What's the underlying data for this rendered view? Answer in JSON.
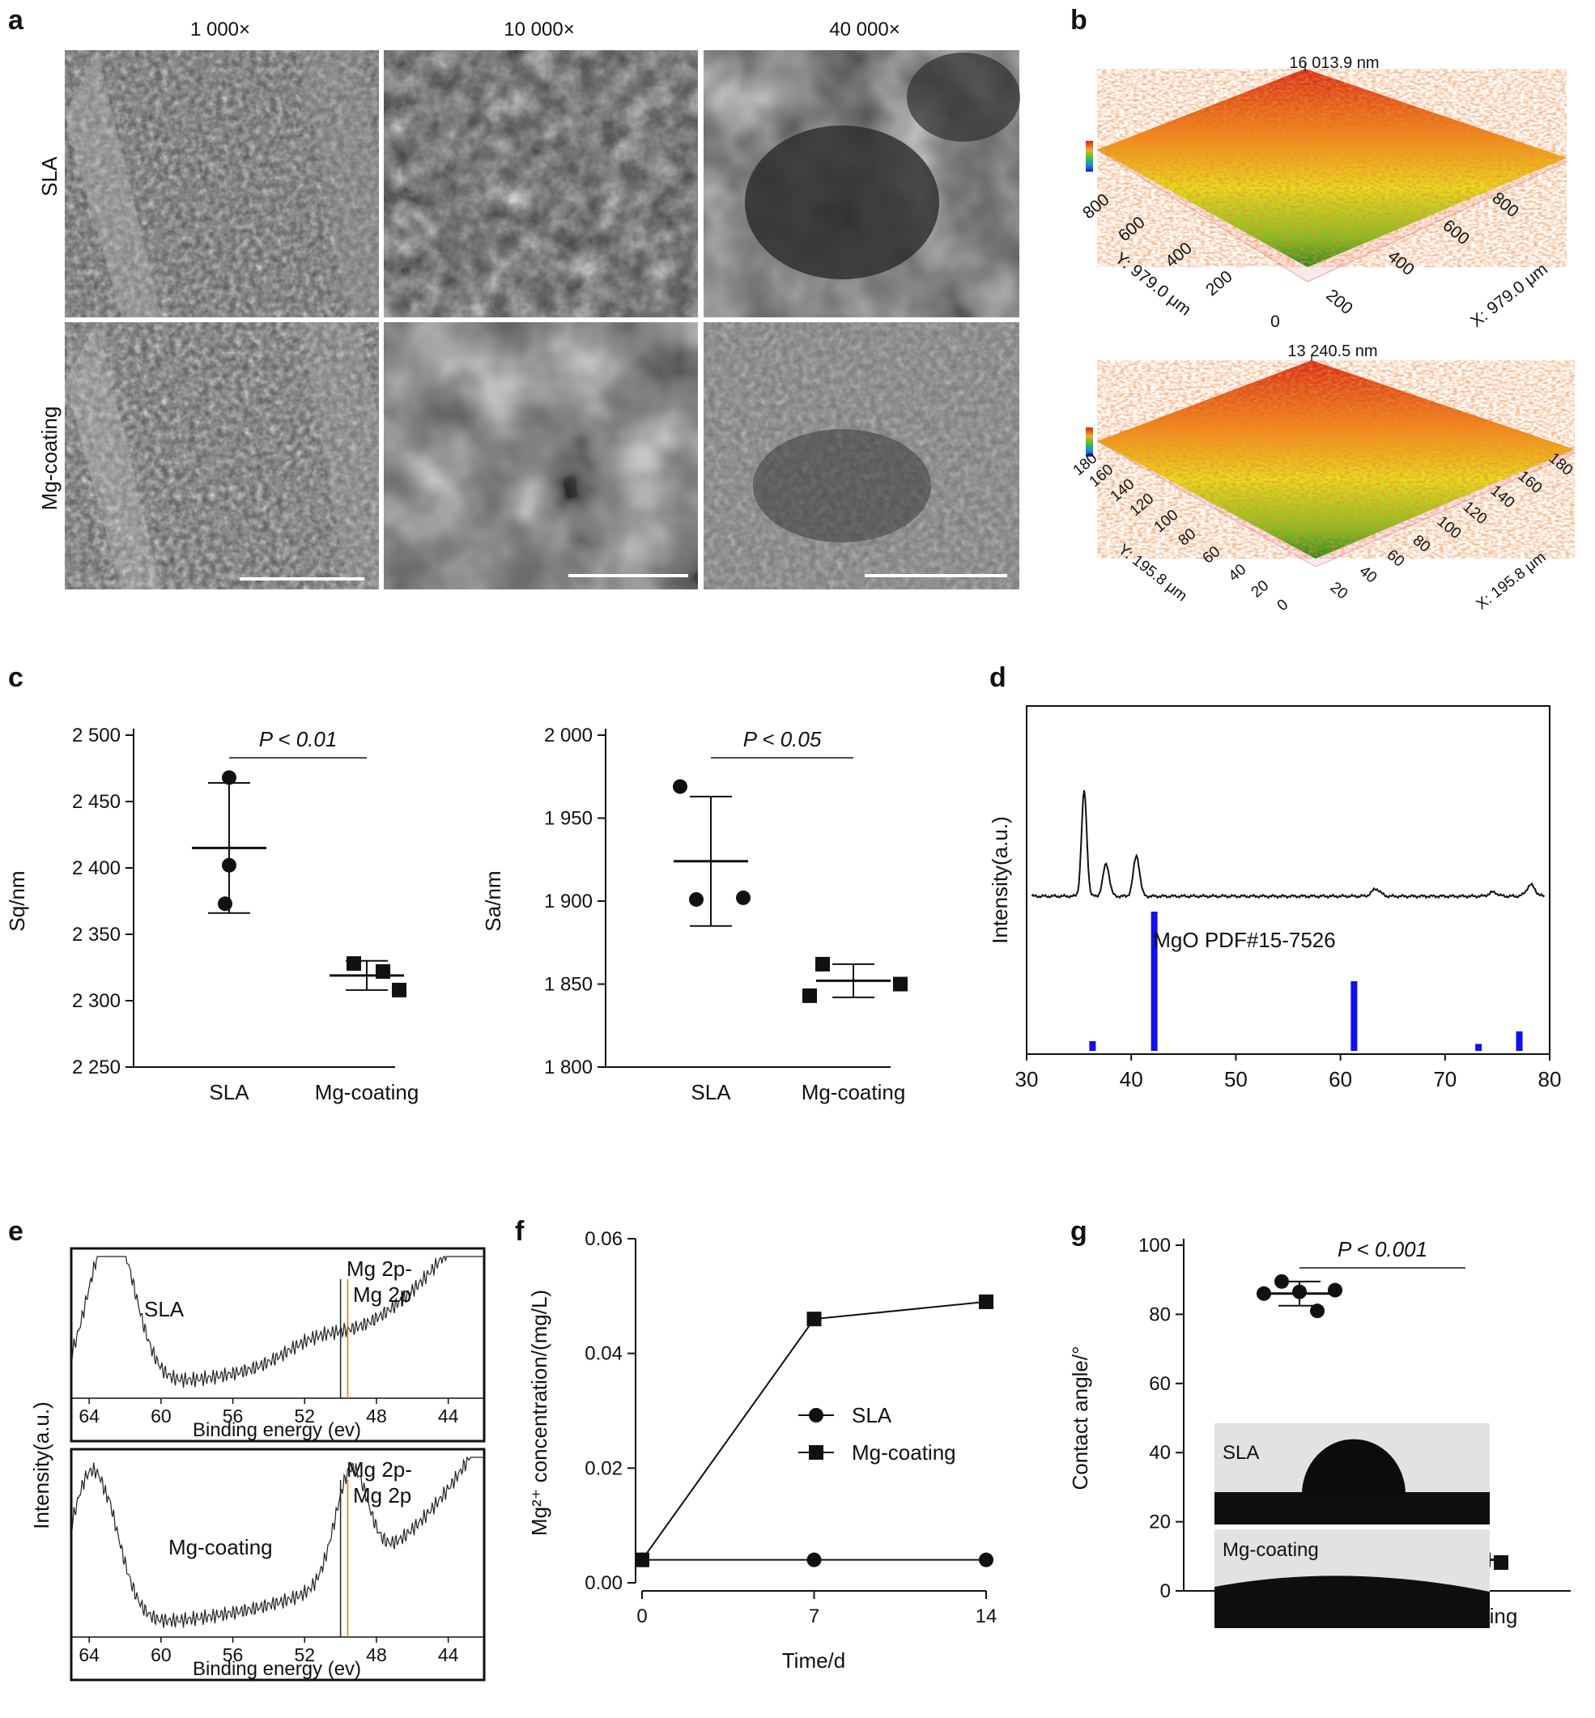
{
  "panel_letters": [
    "a",
    "b",
    "c",
    "d",
    "e",
    "f",
    "g"
  ],
  "panel_a": {
    "columns": [
      "1 000×",
      "10 000×",
      "40 000×"
    ],
    "rows": [
      "SLA",
      "Mg-coating"
    ]
  },
  "panel_b": {
    "top": {
      "peak": "16 013.9 nm",
      "y_label": "Y: 979.0 μm",
      "x_label": "X: 979.0 μm",
      "y_ticks": [
        "0",
        "200",
        "400",
        "600",
        "800"
      ],
      "x_ticks": [
        "200",
        "400",
        "600",
        "800"
      ]
    },
    "bottom": {
      "peak": "13 240.5 nm",
      "y_label": "Y: 195.8 μm",
      "x_label": "X: 195.8 μm",
      "y_ticks": [
        "0",
        "20",
        "40",
        "60",
        "80",
        "100",
        "120",
        "140",
        "160",
        "180"
      ],
      "x_ticks": [
        "20",
        "40",
        "60",
        "80",
        "100",
        "120",
        "140",
        "160",
        "180"
      ]
    },
    "surface_colors": [
      "#1f8a1f",
      "#7ac21e",
      "#e6e01c",
      "#f08a18",
      "#d6281a"
    ]
  },
  "chart_data": [
    {
      "panel": "c-left",
      "type": "scatter",
      "ylabel": "Sq/nm",
      "categories": [
        "SLA",
        "Mg-coating"
      ],
      "ylim": [
        2250,
        2500
      ],
      "yticks": [
        "2 250",
        "2 300",
        "2 350",
        "2 400",
        "2 450",
        "2 500"
      ],
      "series": [
        {
          "name": "SLA",
          "marker": "circle",
          "points": [
            2468,
            2402,
            2373
          ],
          "mean": 2415,
          "sd_low": 2366,
          "sd_high": 2464
        },
        {
          "name": "Mg-coating",
          "marker": "square",
          "points": [
            2322,
            2328,
            2308
          ],
          "mean": 2319,
          "sd_low": 2308,
          "sd_high": 2330
        }
      ],
      "annotation": "P < 0.01"
    },
    {
      "panel": "c-right",
      "type": "scatter",
      "ylabel": "Sa/nm",
      "categories": [
        "SLA",
        "Mg-coating"
      ],
      "ylim": [
        1800,
        2000
      ],
      "yticks": [
        "1 800",
        "1 850",
        "1 900",
        "1 950",
        "2 000"
      ],
      "series": [
        {
          "name": "SLA",
          "marker": "circle",
          "points": [
            1969,
            1901,
            1902
          ],
          "mean": 1924,
          "sd_low": 1885,
          "sd_high": 1963
        },
        {
          "name": "Mg-coating",
          "marker": "square",
          "points": [
            1862,
            1843,
            1850
          ],
          "mean": 1852,
          "sd_low": 1842,
          "sd_high": 1862
        }
      ],
      "annotation": "P < 0.05"
    },
    {
      "panel": "d",
      "type": "line",
      "ylabel": "Intensity(a.u.)",
      "xlim": [
        30,
        80
      ],
      "xticks": [
        "30",
        "40",
        "50",
        "60",
        "70",
        "80"
      ],
      "xrd_peaks_2theta": [
        35.5,
        37.6,
        40.5,
        63.4,
        74.6,
        78.2
      ],
      "reference_label": "MgO PDF#15-7526",
      "reference_bars": [
        {
          "x": 36.3,
          "rel": 0.07
        },
        {
          "x": 42.2,
          "rel": 1.0
        },
        {
          "x": 61.3,
          "rel": 0.5
        },
        {
          "x": 73.2,
          "rel": 0.05
        },
        {
          "x": 77.1,
          "rel": 0.14
        }
      ],
      "reference_color": "#1010ee"
    },
    {
      "panel": "e",
      "type": "line",
      "ylabel": "Intensity(a.u.)",
      "xlabel": "Binding energy (ev)",
      "xticks": [
        "64",
        "60",
        "56",
        "52",
        "48",
        "44"
      ],
      "xlim": [
        65,
        42
      ],
      "subplots": [
        {
          "name": "SLA",
          "peak_label": [
            "Mg 2p-",
            "Mg 2p"
          ],
          "main_peak_ev": 62.8,
          "mg_peak_ev": null
        },
        {
          "name": "Mg-coating",
          "peak_label": [
            "Mg 2p-",
            "Mg 2p"
          ],
          "main_peak_ev": 63.8,
          "mg_peak_ev": 49.4
        }
      ],
      "marker_lines_ev": [
        50.0,
        49.6
      ],
      "marker_colors": [
        "#222222",
        "#e07a18"
      ]
    },
    {
      "panel": "f",
      "type": "line",
      "xlabel": "Time/d",
      "ylabel": "Mg²⁺ concentration/(mg/L)",
      "x": [
        0,
        7,
        14
      ],
      "xlim": [
        0,
        14
      ],
      "ylim": [
        0,
        0.06
      ],
      "yticks": [
        "0.00",
        "0.02",
        "0.04",
        "0.06"
      ],
      "xticks": [
        "0",
        "7",
        "14"
      ],
      "series": [
        {
          "name": "SLA",
          "marker": "circle",
          "values": [
            0.004,
            0.004,
            0.004
          ]
        },
        {
          "name": "Mg-coating",
          "marker": "square",
          "values": [
            0.004,
            0.046,
            0.049
          ]
        }
      ]
    },
    {
      "panel": "g",
      "type": "scatter",
      "ylabel": "Contact angle/°",
      "categories": [
        "SLA",
        "Mg-coating"
      ],
      "ylim": [
        0,
        100
      ],
      "yticks": [
        "0",
        "20",
        "40",
        "60",
        "80",
        "100"
      ],
      "series": [
        {
          "name": "SLA",
          "marker": "circle",
          "points": [
            86,
            89.5,
            86.5,
            81,
            87
          ],
          "mean": 86,
          "sd_low": 82.5,
          "sd_high": 89.5
        },
        {
          "name": "Mg-coating",
          "marker": "square",
          "points": [
            8.5,
            9.8,
            9,
            9,
            8.2
          ],
          "mean": 9,
          "sd_low": 8.5,
          "sd_high": 9.5
        }
      ],
      "annotation": "P < 0.001",
      "inset_labels": [
        "SLA",
        "Mg-coating"
      ]
    }
  ]
}
